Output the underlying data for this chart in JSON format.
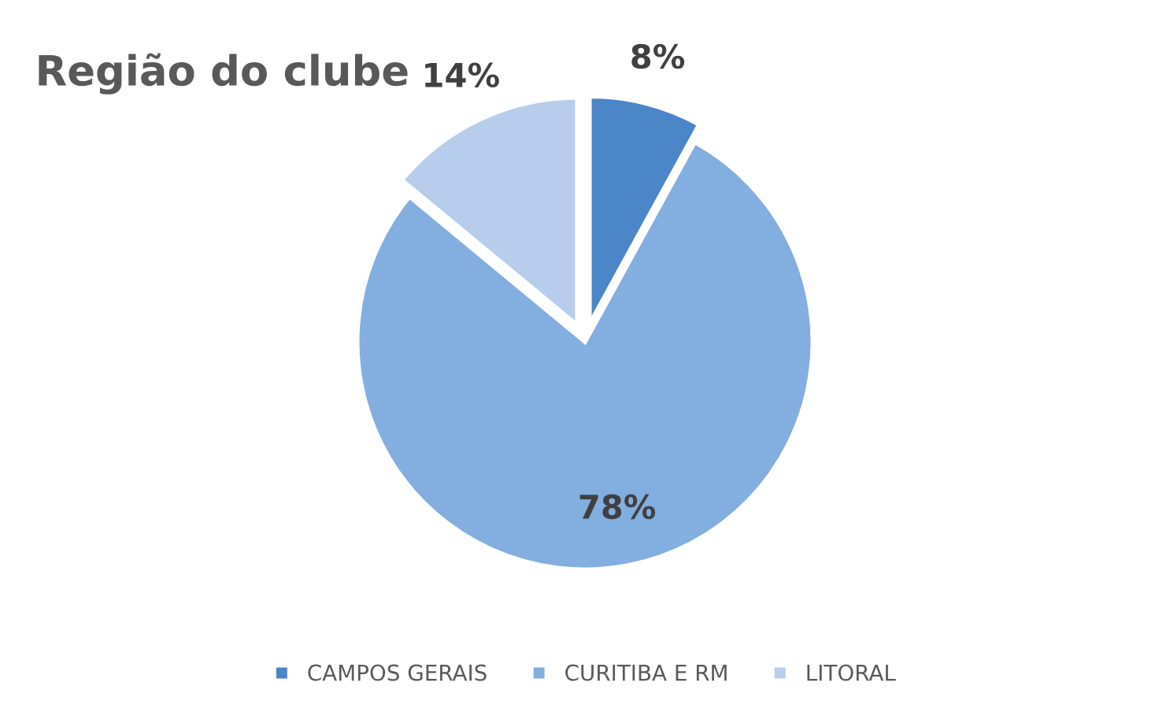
{
  "chart_data": {
    "type": "pie",
    "title": "Região do clube",
    "categories": [
      "CAMPOS GERAIS",
      "CURITIBA E RM",
      "LITORAL"
    ],
    "values": [
      8,
      78,
      14
    ],
    "colors": [
      "#4a86c8",
      "#82aee0",
      "#b6cdec"
    ],
    "value_labels": [
      "8%",
      "78%",
      "14%"
    ],
    "legend": "bottom"
  }
}
